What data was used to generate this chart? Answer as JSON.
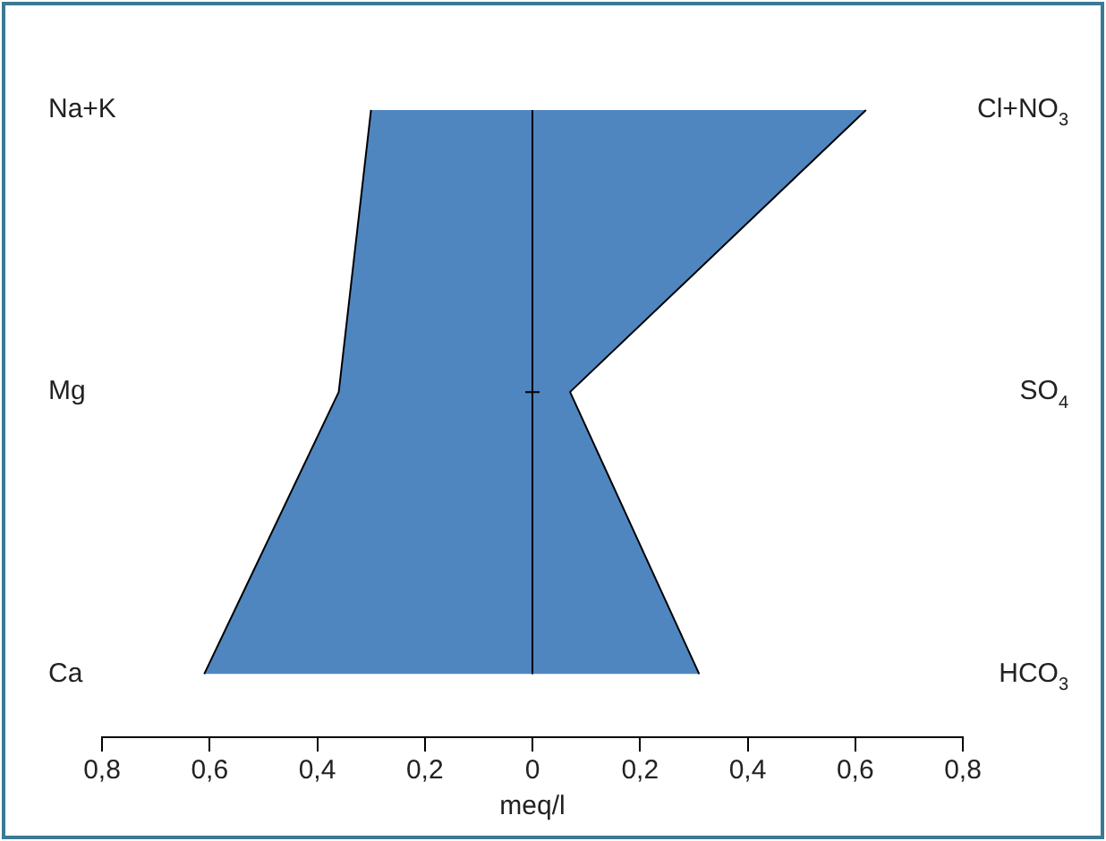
{
  "chart_data": {
    "type": "area",
    "orientation": "horizontal",
    "xlabel": "meq/l",
    "categories": [
      "Na+K",
      "Mg",
      "Ca"
    ],
    "y2_categories": [
      "Cl+NO$_{3}$",
      "SO$_{4}$",
      "HCO$_{3}$"
    ],
    "series": [
      {
        "color": "#4f86c0",
        "values": [
          -0.3,
          -0.36,
          -0.61
        ]
      },
      {
        "color": "#4f86c0",
        "values": [
          0.62,
          0.07,
          0.31
        ]
      }
    ],
    "xlim": [
      -0.8,
      0.8
    ],
    "xticks": [
      {
        "value": -0.8,
        "label": "0,8"
      },
      {
        "value": -0.6,
        "label": "0,6"
      },
      {
        "value": -0.4,
        "label": "0,4"
      },
      {
        "value": -0.2,
        "label": "0,2"
      },
      0,
      {
        "value": 0.2,
        "label": "0,2"
      },
      {
        "value": 0.4,
        "label": "0,4"
      },
      {
        "value": 0.6,
        "label": "0,6"
      },
      {
        "value": 0.8,
        "label": "0,8"
      }
    ],
    "ref_lines": [
      {
        "axis": "x",
        "value": 0,
        "color": "#000000"
      }
    ],
    "grid": false,
    "legend": false
  }
}
